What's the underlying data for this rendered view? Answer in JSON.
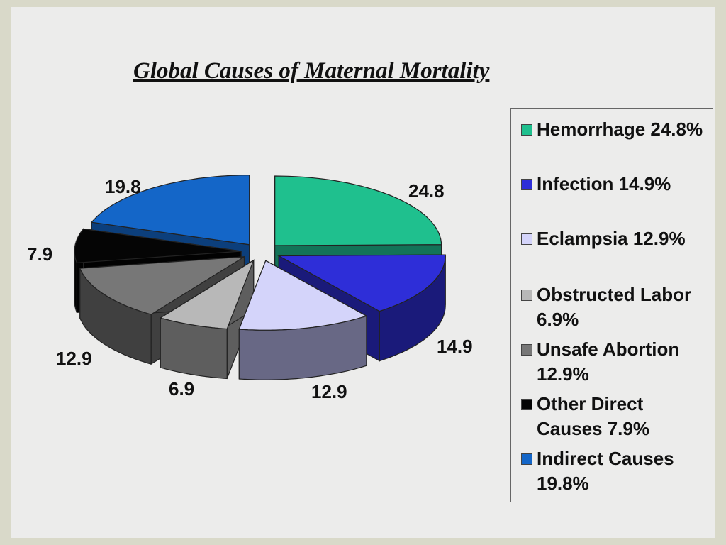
{
  "title": "Global Causes of Maternal Mortality",
  "chart_data": {
    "type": "pie",
    "title": "Global Causes of Maternal Mortality",
    "labels": [
      "Hemorrhage",
      "Infection",
      "Eclampsia",
      "Obstructed Labor",
      "Unsafe Abortion",
      "Other Direct Causes",
      "Indirect Causes"
    ],
    "values": [
      24.8,
      14.9,
      12.9,
      6.9,
      12.9,
      7.9,
      19.8
    ],
    "value_labels": [
      "24.8",
      "14.9",
      "12.9",
      "6.9",
      "12.9",
      "7.9",
      "19.8"
    ],
    "colors": [
      "#1fc08e",
      "#2e2ed8",
      "#d4d4fa",
      "#b8b8b8",
      "#777777",
      "#050505",
      "#1466c8"
    ],
    "side_colors": [
      "#137358",
      "#1a1a7a",
      "#686885",
      "#5e5e5e",
      "#404040",
      "#020202",
      "#0c3f7c"
    ],
    "legend": [
      "Hemorrhage 24.8%",
      "Infection 14.9%",
      "Eclampsia 12.9%",
      "Obstructed Labor 6.9%",
      "Unsafe Abortion 12.9%",
      "Other Direct Causes 7.9%",
      "Indirect Causes 19.8%"
    ],
    "legend_placement": "right",
    "style": "3d exploded pie"
  }
}
